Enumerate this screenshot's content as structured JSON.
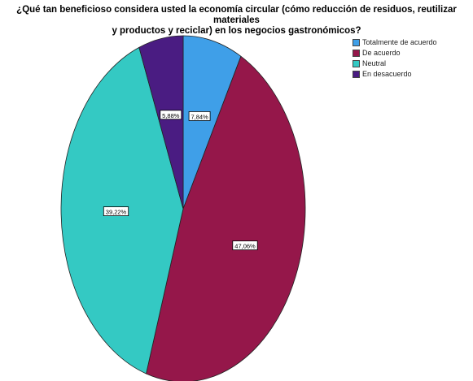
{
  "chart_data": {
    "type": "pie",
    "title_line1": "¿Qué tan beneficioso considera usted la economía circular (cómo reducción de residuos, reutilizar materiales",
    "title_line2": "y productos y reciclar) en los negocios gastronómicos?",
    "legend_placement": "top-right",
    "slices": [
      {
        "name": "Totalmente de acuerdo",
        "value": 7.84,
        "label": "7,84%",
        "color": "#3f9fe8"
      },
      {
        "name": "De acuerdo",
        "value": 47.06,
        "label": "47,06%",
        "color": "#95174a"
      },
      {
        "name": "Neutral",
        "value": 39.22,
        "label": "39,22%",
        "color": "#34c9c3"
      },
      {
        "name": "En desacuerdo",
        "value": 5.88,
        "label": "5,88%",
        "color": "#4a1c82"
      }
    ]
  }
}
